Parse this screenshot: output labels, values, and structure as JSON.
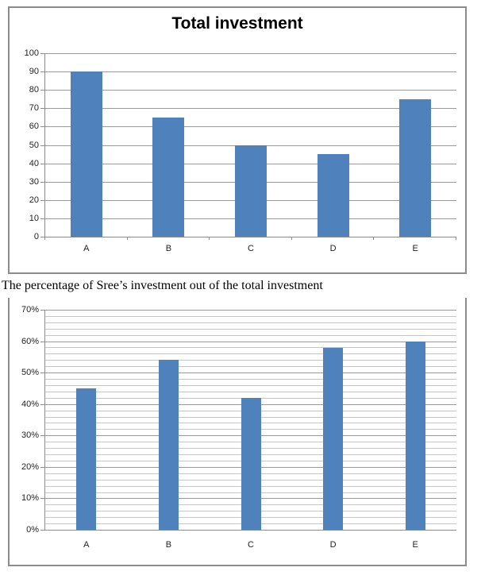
{
  "caption": "The percentage of Sree’s investment out of the total investment",
  "colors": {
    "bar_fill": "#4f81bd",
    "grid_major": "#9a9a9a",
    "grid_minor": "#c6c6c6",
    "axis_line": "#8c8c8c",
    "frame_border": "#8c8c8c",
    "tick_label_text": "#1f1f1f",
    "title_text": "#000000",
    "background": "#ffffff"
  },
  "chart_data": [
    {
      "type": "bar",
      "title": "Total investment",
      "categories": [
        "A",
        "B",
        "C",
        "D",
        "E"
      ],
      "values": [
        90,
        65,
        50,
        45,
        75
      ],
      "ylim": [
        0,
        100
      ],
      "y_major_step": 10,
      "y_minor_step": 0,
      "y_tick_labels": [
        "0",
        "10",
        "20",
        "30",
        "40",
        "50",
        "60",
        "70",
        "80",
        "90",
        "100"
      ],
      "xlabel": "",
      "ylabel": "",
      "grid": "major-horizontal",
      "legend_position": "none",
      "x_boundary_ticks": true,
      "bar_color": "#4f81bd"
    },
    {
      "type": "bar",
      "title": "",
      "categories": [
        "A",
        "B",
        "C",
        "D",
        "E"
      ],
      "values": [
        45,
        54,
        42,
        58,
        60
      ],
      "value_unit": "%",
      "ylim": [
        0,
        70
      ],
      "y_major_step": 10,
      "y_minor_step": 2,
      "y_tick_labels": [
        "0%",
        "10%",
        "20%",
        "30%",
        "40%",
        "50%",
        "60%",
        "70%"
      ],
      "xlabel": "",
      "ylabel": "",
      "grid": "major-and-minor-horizontal",
      "legend_position": "none",
      "x_boundary_ticks": false,
      "bar_color": "#4f81bd"
    }
  ]
}
